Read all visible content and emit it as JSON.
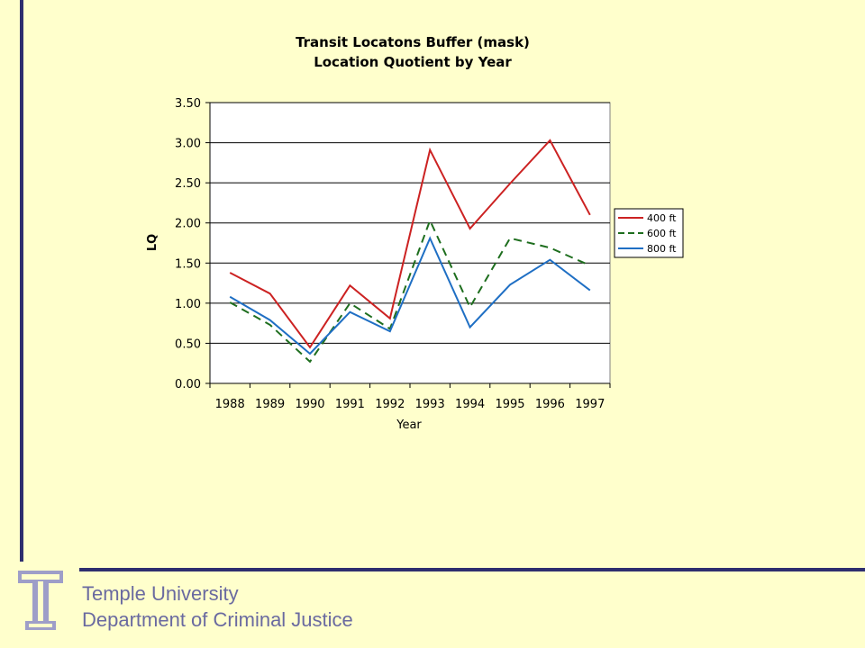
{
  "chart_data": {
    "type": "line",
    "title": "Transit Locatons Buffer (mask)",
    "subtitle": "Location Quotient by Year",
    "xlabel": "Year",
    "ylabel": "LQ",
    "ylim": [
      0,
      3.5
    ],
    "ytick_step": 0.5,
    "ytick_labels": [
      "0.00",
      "0.50",
      "1.00",
      "1.50",
      "2.00",
      "2.50",
      "3.00",
      "3.50"
    ],
    "categories": [
      "1988",
      "1989",
      "1990",
      "1991",
      "1992",
      "1993",
      "1994",
      "1995",
      "1996",
      "1997"
    ],
    "grid": "horizontal",
    "legend_position": "right",
    "series": [
      {
        "name": "400 ft",
        "color": "#CC2222",
        "dash": "solid",
        "values": [
          1.38,
          1.12,
          0.45,
          1.22,
          0.81,
          2.91,
          1.93,
          2.49,
          3.03,
          2.1
        ]
      },
      {
        "name": "600 ft",
        "color": "#1E6E1E",
        "dash": "dashed",
        "values": [
          1.01,
          0.73,
          0.27,
          1.0,
          0.68,
          2.03,
          0.95,
          1.81,
          1.69,
          1.47
        ]
      },
      {
        "name": "800 ft",
        "color": "#1F6FC4",
        "dash": "solid",
        "values": [
          1.08,
          0.79,
          0.37,
          0.89,
          0.65,
          1.81,
          0.7,
          1.23,
          1.54,
          1.16
        ]
      }
    ]
  },
  "footer": {
    "line1": "Temple University",
    "line2": "Department of Criminal Justice"
  }
}
